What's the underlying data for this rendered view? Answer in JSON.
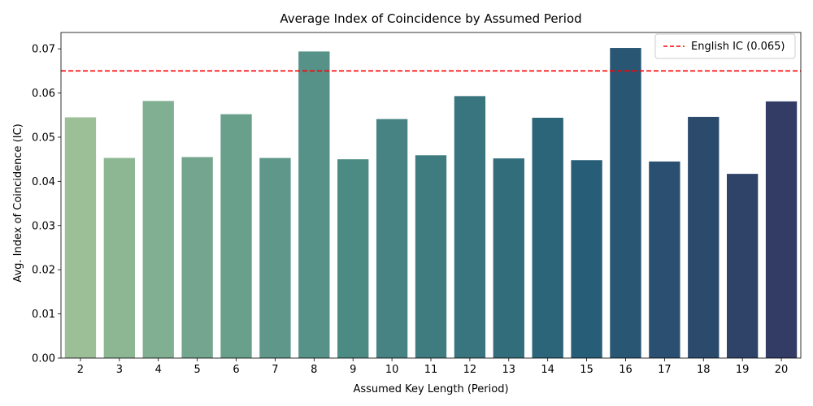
{
  "chart_data": {
    "type": "bar",
    "title": "Average Index of Coincidence by Assumed Period",
    "xlabel": "Assumed Key Length (Period)",
    "ylabel": "Avg. Index of Coincidence (IC)",
    "categories": [
      "2",
      "3",
      "4",
      "5",
      "6",
      "7",
      "8",
      "9",
      "10",
      "11",
      "12",
      "13",
      "14",
      "15",
      "16",
      "17",
      "18",
      "19",
      "20"
    ],
    "values": [
      0.0545,
      0.0453,
      0.0582,
      0.0455,
      0.0552,
      0.0453,
      0.0694,
      0.045,
      0.0541,
      0.0459,
      0.0593,
      0.0452,
      0.0544,
      0.0448,
      0.0702,
      0.0445,
      0.0546,
      0.0417,
      0.0581
    ],
    "ylim": [
      0,
      0.0737
    ],
    "yticks": [
      "0.00",
      "0.01",
      "0.02",
      "0.03",
      "0.04",
      "0.05",
      "0.06",
      "0.07"
    ],
    "grid": false,
    "palette": "crest",
    "bar_colors": [
      "#9cbf98",
      "#8db793",
      "#81af91",
      "#73a58f",
      "#69a08b",
      "#5f988a",
      "#569287",
      "#4c8a84",
      "#468382",
      "#3f7c80",
      "#39757e",
      "#326d7c",
      "#2c6479",
      "#285d77",
      "#285673",
      "#2a4f70",
      "#2c4a6c",
      "#2f4268",
      "#323c65"
    ],
    "reference_line": {
      "value": 0.065,
      "label": "English IC (0.065)",
      "color": "#ff0000",
      "style": "dashed"
    },
    "legend_placement": "top-right"
  }
}
